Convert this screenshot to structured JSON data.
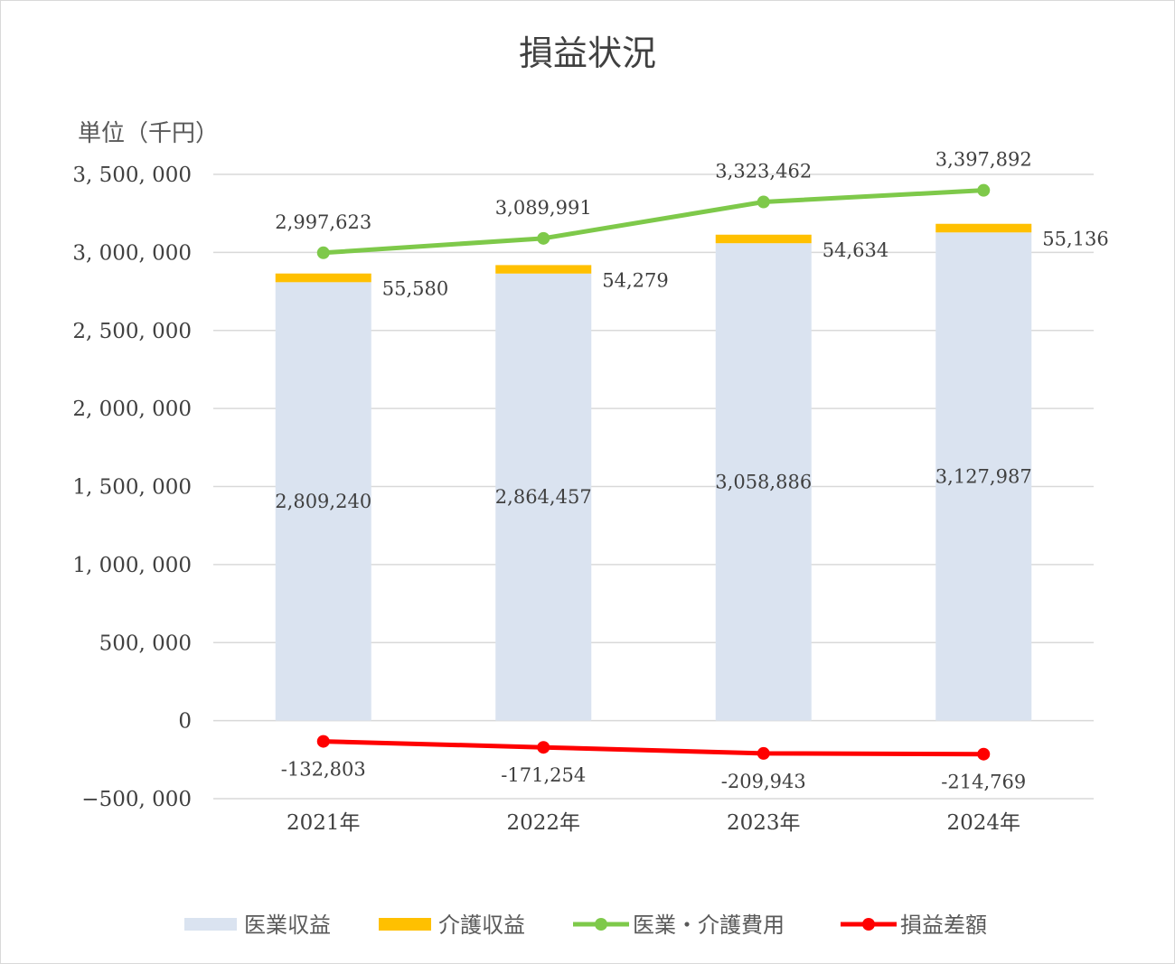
{
  "chart_data": {
    "type": "bar",
    "title": "損益状況",
    "unit_label": "単位（千円）",
    "categories": [
      "2021年",
      "2022年",
      "2023年",
      "2024年"
    ],
    "ylim": [
      -500000,
      3500000
    ],
    "y_ticks": [
      3500000,
      3000000,
      2500000,
      2000000,
      1500000,
      1000000,
      500000,
      0,
      -500000
    ],
    "y_tick_labels": [
      "3, 500, 000",
      "3, 000, 000",
      "2, 500, 000",
      "2, 000, 000",
      "1, 500, 000",
      "1, 000, 000",
      "500, 000",
      "0",
      "−500, 000"
    ],
    "grid": true,
    "legend_position": "bottom",
    "series": [
      {
        "name": "医業収益",
        "kind": "stacked-bar",
        "color": "#dae3f0",
        "values": [
          2809240,
          2864457,
          3058886,
          3127987
        ],
        "labels": [
          "2,809,240",
          "2,864,457",
          "3,058,886",
          "3,127,987"
        ]
      },
      {
        "name": "介護収益",
        "kind": "stacked-bar",
        "color": "#ffc000",
        "values": [
          55580,
          54279,
          54634,
          55136
        ],
        "labels": [
          "55,580",
          "54,279",
          "54,634",
          "55,136"
        ]
      },
      {
        "name": "医業・介護費用",
        "kind": "line",
        "color": "#7ec94a",
        "values": [
          2997623,
          3089991,
          3323462,
          3397892
        ],
        "labels": [
          "2,997,623",
          "3,089,991",
          "3,323,462",
          "3,397,892"
        ]
      },
      {
        "name": "損益差額",
        "kind": "line",
        "color": "#ff0000",
        "values": [
          -132803,
          -171254,
          -209943,
          -214769
        ],
        "labels": [
          "-132,803",
          "-171,254",
          "-209,943",
          "-214,769"
        ]
      }
    ]
  }
}
